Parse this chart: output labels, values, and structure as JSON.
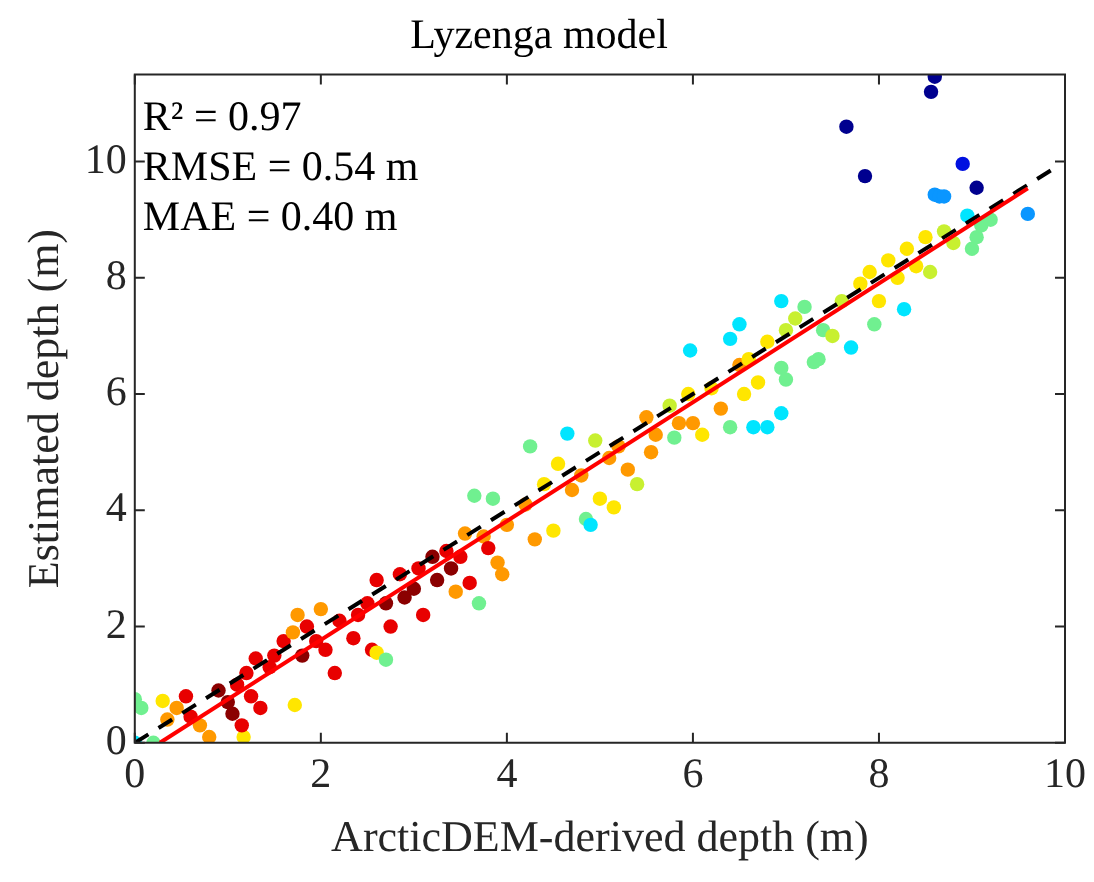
{
  "chart_data": {
    "type": "scatter",
    "title": "Lyzenga model",
    "xlabel": "ArcticDEM-derived depth (m)",
    "ylabel": "Estimated depth (m)",
    "annotations": [
      "R² = 0.97",
      "RMSE = 0.54 m",
      "MAE = 0.40 m"
    ],
    "xlim": [
      0,
      10
    ],
    "xticks": [
      0,
      2,
      4,
      6,
      8,
      10
    ],
    "ylim": [
      0,
      11.5
    ],
    "yticks": [
      0,
      2,
      4,
      6,
      8,
      10
    ],
    "grid": false,
    "legend": false,
    "marker": "circle",
    "series": [
      {
        "type": "scatter",
        "x": [
          0.0,
          0.0,
          0.07,
          0.2,
          0.3,
          0.35,
          0.45,
          0.55,
          0.6,
          0.7,
          0.8,
          1.17,
          1.72,
          0.9,
          1.0,
          1.05,
          1.1,
          1.2,
          1.25,
          1.3,
          1.35,
          1.15,
          1.45,
          1.5,
          1.6,
          1.7,
          1.75,
          1.8,
          1.85,
          1.95,
          2.0,
          2.05,
          2.15,
          2.2,
          2.35,
          2.4,
          2.5,
          2.55,
          2.6,
          2.6,
          2.7,
          2.7,
          2.75,
          2.85,
          2.9,
          3.0,
          3.05,
          3.1,
          3.2,
          3.25,
          3.35,
          3.4,
          3.45,
          3.5,
          3.55,
          3.6,
          3.65,
          3.7,
          3.75,
          3.8,
          3.85,
          3.9,
          3.95,
          4.0,
          4.2,
          4.25,
          4.3,
          4.4,
          4.5,
          4.55,
          4.65,
          4.7,
          4.8,
          4.85,
          4.9,
          4.95,
          5.0,
          5.1,
          5.15,
          5.2,
          5.3,
          5.4,
          5.5,
          5.55,
          5.6,
          5.75,
          5.8,
          5.85,
          5.95,
          6.0,
          6.1,
          6.2,
          6.3,
          6.4,
          6.5,
          6.55,
          6.65,
          6.7,
          6.8,
          6.95,
          6.95,
          7.0,
          7.35,
          5.97,
          6.4,
          6.5,
          6.95,
          6.6,
          6.8,
          7.0,
          7.1,
          7.2,
          7.3,
          7.4,
          7.5,
          7.6,
          7.7,
          7.8,
          7.9,
          7.95,
          8.0,
          8.1,
          8.2,
          8.27,
          8.3,
          8.4,
          8.5,
          8.55,
          8.7,
          8.8,
          9.0,
          9.05,
          9.1,
          9.2,
          8.95,
          8.6,
          8.65,
          8.7,
          9.6,
          8.6,
          8.56,
          7.65,
          7.85,
          8.9,
          9.05
        ],
        "values": [
          0.0,
          0.75,
          0.6,
          0.0,
          0.72,
          0.4,
          0.6,
          0.8,
          0.45,
          0.3,
          0.1,
          0.1,
          0.65,
          0.9,
          0.7,
          0.5,
          1.0,
          1.2,
          0.8,
          1.45,
          0.6,
          0.3,
          1.3,
          1.5,
          1.75,
          1.9,
          2.2,
          1.5,
          2.0,
          1.75,
          2.3,
          1.6,
          1.2,
          2.1,
          1.8,
          2.2,
          2.4,
          1.6,
          2.8,
          1.55,
          1.43,
          2.4,
          2.0,
          2.9,
          2.5,
          2.65,
          3.0,
          2.2,
          3.2,
          2.8,
          3.3,
          3.0,
          2.6,
          3.2,
          3.6,
          2.75,
          4.25,
          2.4,
          3.55,
          3.35,
          4.2,
          3.1,
          2.9,
          3.75,
          4.1,
          5.1,
          3.5,
          4.45,
          3.65,
          4.8,
          5.32,
          4.35,
          4.6,
          3.85,
          3.75,
          5.2,
          4.2,
          4.9,
          4.05,
          5.1,
          4.7,
          4.45,
          5.6,
          5.0,
          5.3,
          5.8,
          5.25,
          5.5,
          6.0,
          5.5,
          5.3,
          6.1,
          5.75,
          5.43,
          6.5,
          6.0,
          5.43,
          6.2,
          5.43,
          5.67,
          6.45,
          6.25,
          6.6,
          6.75,
          6.95,
          7.2,
          7.6,
          6.6,
          6.9,
          7.1,
          7.3,
          7.5,
          6.55,
          7.1,
          7.0,
          7.6,
          6.8,
          7.9,
          8.1,
          7.2,
          7.6,
          8.3,
          8.0,
          7.46,
          8.5,
          8.2,
          8.7,
          8.1,
          8.8,
          8.6,
          8.5,
          8.7,
          8.9,
          9.0,
          9.07,
          9.43,
          9.4,
          9.4,
          9.1,
          11.46,
          11.2,
          10.6,
          9.75,
          9.96,
          9.55
        ],
        "colors": [
          "#00e5ff",
          "#70f090",
          "#70f090",
          "#70f090",
          "#ffe600",
          "#ff9900",
          "#ff9900",
          "#e80000",
          "#e80000",
          "#ff9900",
          "#ff9900",
          "#ffe600",
          "#ffe600",
          "#8b0000",
          "#8b0000",
          "#8b0000",
          "#e80000",
          "#e80000",
          "#e80000",
          "#e80000",
          "#e80000",
          "#e80000",
          "#e80000",
          "#e80000",
          "#e80000",
          "#ff9900",
          "#ff9900",
          "#8b0000",
          "#e80000",
          "#e80000",
          "#ff9900",
          "#e80000",
          "#e80000",
          "#e80000",
          "#e80000",
          "#e80000",
          "#e80000",
          "#e80000",
          "#e80000",
          "#ffe600",
          "#70f090",
          "#8b0000",
          "#e80000",
          "#e80000",
          "#8b0000",
          "#8b0000",
          "#e80000",
          "#e80000",
          "#8b0000",
          "#8b0000",
          "#e80000",
          "#8b0000",
          "#ff9900",
          "#e80000",
          "#ff9900",
          "#e80000",
          "#70f090",
          "#70f090",
          "#ff9900",
          "#e80000",
          "#70f090",
          "#ff9900",
          "#ff9900",
          "#ff9900",
          "#ff9900",
          "#70f090",
          "#ff9900",
          "#ffe600",
          "#ffe600",
          "#ffe600",
          "#00e5ff",
          "#ff9900",
          "#ff9900",
          "#70f090",
          "#00e5ff",
          "#c8f030",
          "#ffe600",
          "#ff9900",
          "#ffe600",
          "#ff9900",
          "#ff9900",
          "#c8f030",
          "#ff9900",
          "#ff9900",
          "#ff9900",
          "#c8f030",
          "#70f090",
          "#ff9900",
          "#ffe600",
          "#ff9900",
          "#ffe600",
          "#ffe600",
          "#ff9900",
          "#70f090",
          "#ff9900",
          "#ffe600",
          "#00e5ff",
          "#ffe600",
          "#00e5ff",
          "#00e5ff",
          "#70f090",
          "#70f090",
          "#70f090",
          "#00e5ff",
          "#00e5ff",
          "#00e5ff",
          "#00e5ff",
          "#ffe600",
          "#ffe600",
          "#c8f030",
          "#c8f030",
          "#70f090",
          "#70f090",
          "#70f090",
          "#c8f030",
          "#c8f030",
          "#00e5ff",
          "#ffe600",
          "#ffe600",
          "#70f090",
          "#ffe600",
          "#ffe600",
          "#ffe600",
          "#00e5ff",
          "#ffe600",
          "#ffe600",
          "#ffe600",
          "#c8f030",
          "#c8f030",
          "#c8f030",
          "#70f090",
          "#70f090",
          "#70f090",
          "#70f090",
          "#00e5ff",
          "#0a96ff",
          "#0a96ff",
          "#0a96ff",
          "#0a96ff",
          "#00008f",
          "#00008f",
          "#00008f",
          "#00008f",
          "#0010e0",
          "#00008f"
        ]
      },
      {
        "type": "line",
        "x": [
          0.27,
          9.6
        ],
        "values": [
          0,
          9.54
        ],
        "color": "#ff0000",
        "marker": "none",
        "line_style": "solid"
      },
      {
        "type": "line",
        "x": [
          0,
          9.9
        ],
        "values": [
          0,
          9.9
        ],
        "color": "#000000",
        "marker": "none",
        "line_style": "dashed"
      }
    ]
  }
}
